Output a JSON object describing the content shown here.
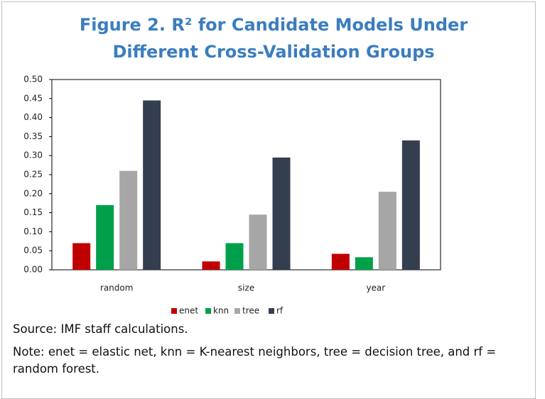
{
  "chart_data": {
    "type": "bar",
    "title": "Figure 2. R² for Candidate Models Under Different Cross-Validation Groups",
    "categories": [
      "random",
      "size",
      "year"
    ],
    "series": [
      {
        "name": "enet",
        "color": "#c00000",
        "values": [
          0.07,
          0.022,
          0.042
        ]
      },
      {
        "name": "knn",
        "color": "#00a04a",
        "values": [
          0.17,
          0.07,
          0.033
        ]
      },
      {
        "name": "tree",
        "color": "#a6a6a6",
        "values": [
          0.26,
          0.145,
          0.205
        ]
      },
      {
        "name": "rf",
        "color": "#333f50",
        "values": [
          0.445,
          0.295,
          0.34
        ]
      }
    ],
    "ylim": [
      0,
      0.5
    ],
    "yticks": [
      {
        "value": 0,
        "label": "0.00"
      },
      {
        "value": 0.05,
        "label": "0.05"
      },
      {
        "value": 0.1,
        "label": "0.10"
      },
      {
        "value": 0.15,
        "label": "0.15"
      },
      {
        "value": 0.2,
        "label": "0.20"
      },
      {
        "value": 0.25,
        "label": "0.25"
      },
      {
        "value": 0.3,
        "label": "0.30"
      },
      {
        "value": 0.35,
        "label": "0.35"
      },
      {
        "value": 0.4,
        "label": "0.40"
      },
      {
        "value": 0.45,
        "label": "0.45"
      },
      {
        "value": 0.5,
        "label": "0.50"
      }
    ],
    "legend": "bottom"
  },
  "source": "Source: IMF staff calculations.",
  "note": "Note: enet = elastic net, knn = K-nearest neighbors, tree = decision tree, and rf = random forest."
}
